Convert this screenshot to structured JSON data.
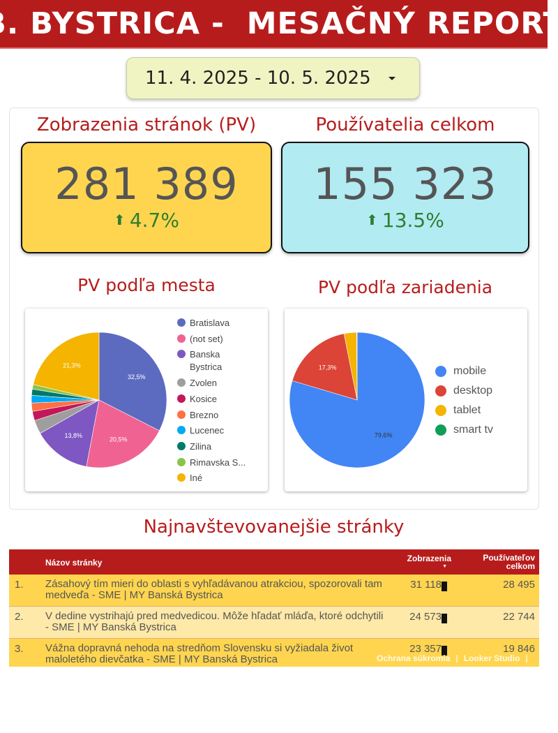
{
  "header": {
    "title": "B. BYSTRICA -  MESAČNÝ REPORT"
  },
  "date_range": {
    "label": "11. 4. 2025 - 10. 5. 2025",
    "icon": "caret-down-icon"
  },
  "kpis": [
    {
      "title": "Zobrazenia stránok (PV)",
      "value": "281 389",
      "delta": "4.7%",
      "direction": "up",
      "bg": "#ffd54f"
    },
    {
      "title": "Používatelia celkom",
      "value": "155 323",
      "delta": "13.5%",
      "direction": "up",
      "bg": "#b2ebf2"
    }
  ],
  "city_chart": {
    "title": "PV podľa mesta",
    "chart_data": {
      "type": "pie",
      "labels": [
        "Bratislava",
        "(not set)",
        "Banska Bystrica",
        "Zvolen",
        "Kosice",
        "Brezno",
        "Lucenec",
        "Zilina",
        "Rimavska S...",
        "Iné"
      ],
      "values": [
        32.5,
        20.5,
        13.8,
        3.3,
        2.2,
        2.0,
        1.8,
        1.5,
        1.1,
        21.3
      ],
      "colors": [
        "#5c6bc0",
        "#f06292",
        "#7e57c2",
        "#9e9e9e",
        "#c2185b",
        "#ff7043",
        "#03a9f4",
        "#00796b",
        "#8bc34a",
        "#f4b400"
      ],
      "data_labels": [
        "32,5%",
        "20,5%",
        "13,8%",
        "",
        "",
        "",
        "",
        "",
        "",
        "21,3%"
      ]
    }
  },
  "device_chart": {
    "title": "PV podľa zariadenia",
    "chart_data": {
      "type": "pie",
      "labels": [
        "mobile",
        "desktop",
        "tablet",
        "smart tv"
      ],
      "values": [
        79.6,
        17.3,
        3.0,
        0.1
      ],
      "colors": [
        "#4285f4",
        "#db4437",
        "#f4b400",
        "#0f9d58"
      ],
      "data_labels": [
        "79,6%",
        "17,3%",
        "",
        ""
      ]
    }
  },
  "top_pages": {
    "title": "Najnavštevovanejšie stránky",
    "columns": {
      "name": "Názov stránky",
      "pv": "Zobrazenia",
      "users": "Používateľov celkom"
    },
    "rows": [
      {
        "num": "1.",
        "name": "Zásahový tím mieri do oblasti s vyhľadávanou atrakciou, spozorovali tam medveďa - SME | MY Banská Bystrica",
        "pv": "31 118",
        "users": "28 495",
        "bg": "#ffd54f"
      },
      {
        "num": "2.",
        "name": "V dedine vystrihajú pred medvedicou. Môže hľadať mláďa, ktoré odchytili - SME | MY Banská Bystrica",
        "pv": "24 573",
        "users": "22 744",
        "bg": "#ffe9a8"
      },
      {
        "num": "3.",
        "name": "Vážna dopravná nehoda na stredňom Slovensku si vyžiadala život maloletého dievčatka - SME | MY Banská Bystrica",
        "pv": "23 357",
        "users": "19 846",
        "bg": "#ffd54f"
      }
    ]
  },
  "footer": {
    "privacy": "Ochrana súkromia",
    "brand": "Looker Studio",
    "icon": "expand-icon"
  }
}
